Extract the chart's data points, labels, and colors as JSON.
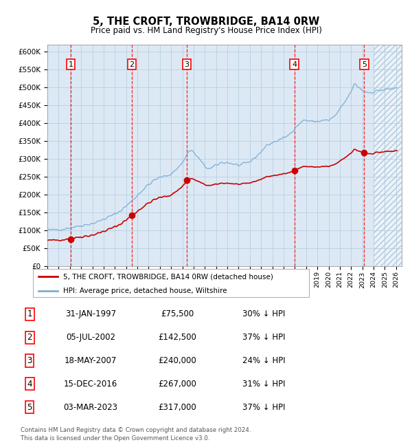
{
  "title": "5, THE CROFT, TROWBRIDGE, BA14 0RW",
  "subtitle": "Price paid vs. HM Land Registry's House Price Index (HPI)",
  "ylim": [
    0,
    620000
  ],
  "yticks": [
    0,
    50000,
    100000,
    150000,
    200000,
    250000,
    300000,
    350000,
    400000,
    450000,
    500000,
    550000,
    600000
  ],
  "ytick_labels": [
    "£0",
    "£50K",
    "£100K",
    "£150K",
    "£200K",
    "£250K",
    "£300K",
    "£350K",
    "£400K",
    "£450K",
    "£500K",
    "£550K",
    "£600K"
  ],
  "sale_dates_year": [
    1997.08,
    2002.51,
    2007.38,
    2016.96,
    2023.17
  ],
  "sale_prices": [
    75500,
    142500,
    240000,
    267000,
    317000
  ],
  "sale_labels": [
    "1",
    "2",
    "3",
    "4",
    "5"
  ],
  "legend_line1": "5, THE CROFT, TROWBRIDGE, BA14 0RW (detached house)",
  "legend_line2": "HPI: Average price, detached house, Wiltshire",
  "table_rows": [
    [
      "1",
      "31-JAN-1997",
      "£75,500",
      "30% ↓ HPI"
    ],
    [
      "2",
      "05-JUL-2002",
      "£142,500",
      "37% ↓ HPI"
    ],
    [
      "3",
      "18-MAY-2007",
      "£240,000",
      "24% ↓ HPI"
    ],
    [
      "4",
      "15-DEC-2016",
      "£267,000",
      "31% ↓ HPI"
    ],
    [
      "5",
      "03-MAR-2023",
      "£317,000",
      "37% ↓ HPI"
    ]
  ],
  "footer": "Contains HM Land Registry data © Crown copyright and database right 2024.\nThis data is licensed under the Open Government Licence v3.0.",
  "bg_color": "#dce9f5",
  "grid_color": "#b8cfe0",
  "line_color_red": "#cc0000",
  "line_color_blue": "#7aaed6",
  "hatch_start": 2024.0,
  "xlim": [
    1995.0,
    2026.5
  ]
}
